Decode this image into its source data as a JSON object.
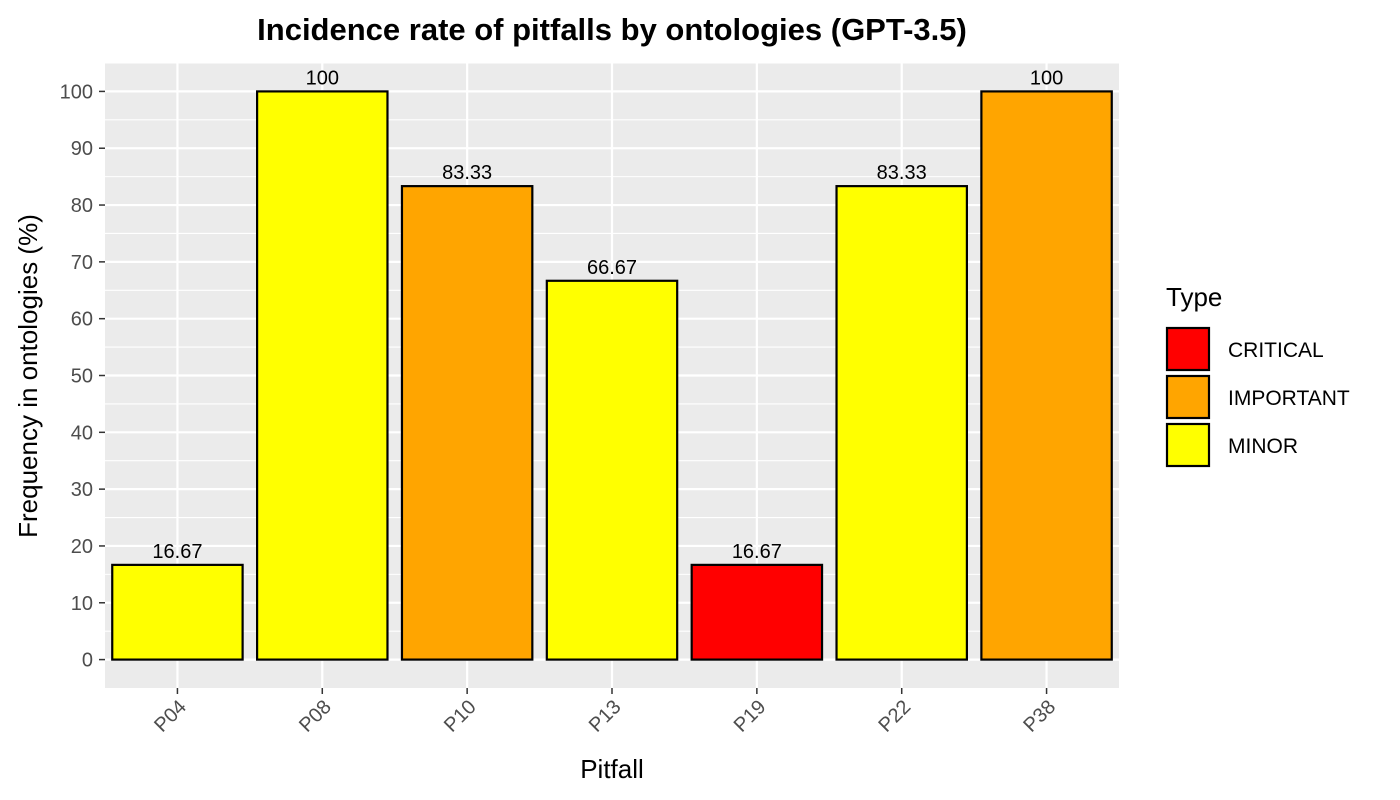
{
  "chart_data": {
    "type": "bar",
    "title": "Incidence rate of pitfalls by ontologies (GPT-3.5)",
    "xlabel": "Pitfall",
    "ylabel": "Frequency in ontologies (%)",
    "ylim": [
      -5,
      105
    ],
    "yticks": [
      0,
      10,
      20,
      30,
      40,
      50,
      60,
      70,
      80,
      90,
      100
    ],
    "grid": true,
    "categories": [
      "P04",
      "P08",
      "P10",
      "P13",
      "P19",
      "P22",
      "P38"
    ],
    "values": [
      16.67,
      100,
      83.33,
      66.67,
      16.67,
      83.33,
      100
    ],
    "value_labels": [
      "16.67",
      "100",
      "83.33",
      "66.67",
      "16.67",
      "83.33",
      "100"
    ],
    "types": [
      "MINOR",
      "MINOR",
      "IMPORTANT",
      "MINOR",
      "CRITICAL",
      "MINOR",
      "IMPORTANT"
    ],
    "legend": {
      "title": "Type",
      "placement": "right",
      "entries": [
        {
          "label": "CRITICAL",
          "color": "#FF0000"
        },
        {
          "label": "IMPORTANT",
          "color": "#FFA500"
        },
        {
          "label": "MINOR",
          "color": "#FFFF00"
        }
      ]
    },
    "panel_color": "#EBEBEB",
    "grid_color": "#FFFFFF"
  }
}
